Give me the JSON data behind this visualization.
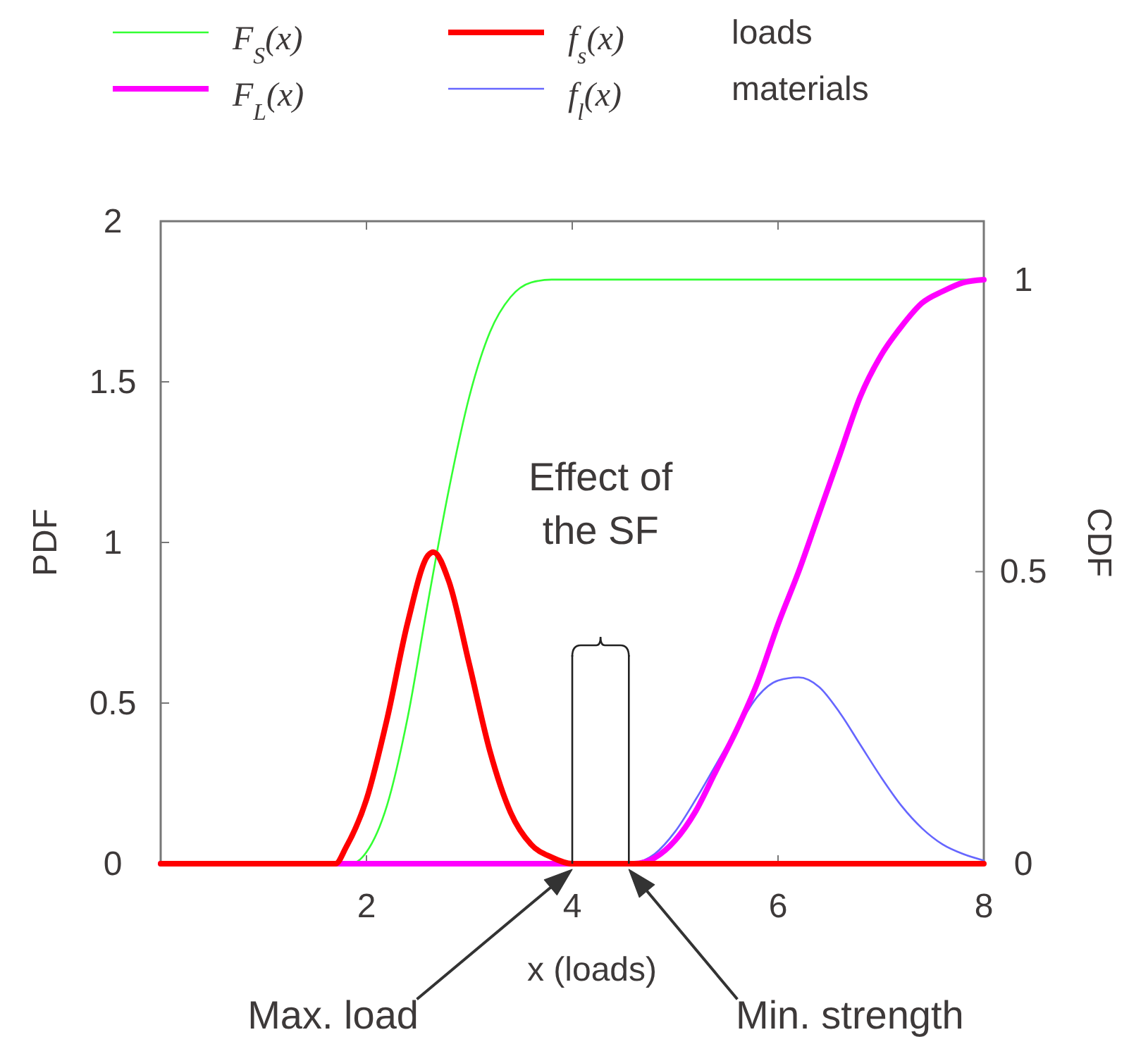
{
  "chart_data": {
    "type": "line",
    "xlabel": "x (loads)",
    "ylabel": "PDF",
    "y2label": "CDF",
    "xlim": [
      0,
      8
    ],
    "xticks": [
      2,
      4,
      6,
      8
    ],
    "ylim": [
      0,
      2
    ],
    "yticks": [
      0,
      0.5,
      1,
      1.5,
      2
    ],
    "y2lim": [
      0,
      1.1
    ],
    "y2ticks": [
      0,
      0.5,
      1
    ],
    "legend": "top",
    "grid": false,
    "marker": "none",
    "line_style": "solid",
    "series": [
      {
        "name": "F$_{S}$(x)",
        "color": "#33ff33",
        "axis": "y2",
        "x": [
          0,
          1.85,
          2.0,
          2.2,
          2.4,
          2.6,
          2.8,
          3.0,
          3.2,
          3.4,
          3.6,
          3.8,
          8
        ],
        "values": [
          0,
          0,
          0.02,
          0.1,
          0.25,
          0.45,
          0.64,
          0.8,
          0.91,
          0.97,
          0.995,
          1,
          1
        ]
      },
      {
        "name": "F$_{L}$(x)",
        "color": "#ff00ff",
        "axis": "y2",
        "x": [
          0,
          4.6,
          4.8,
          5.0,
          5.2,
          5.4,
          5.6,
          5.8,
          6.0,
          6.2,
          6.4,
          6.6,
          6.8,
          7.0,
          7.2,
          7.4,
          7.6,
          7.8,
          8
        ],
        "values": [
          0,
          0,
          0.01,
          0.04,
          0.09,
          0.16,
          0.23,
          0.31,
          0.41,
          0.5,
          0.6,
          0.7,
          0.8,
          0.87,
          0.92,
          0.96,
          0.98,
          0.995,
          1
        ]
      },
      {
        "name": "f$_{s}$(x)",
        "color": "#ff0000",
        "axis": "y",
        "x": [
          0,
          1.7,
          1.8,
          2.0,
          2.2,
          2.4,
          2.6,
          2.65,
          2.8,
          3.0,
          3.2,
          3.4,
          3.6,
          3.8,
          4.0,
          8
        ],
        "values": [
          0,
          0,
          0.05,
          0.2,
          0.45,
          0.75,
          0.96,
          0.97,
          0.88,
          0.62,
          0.35,
          0.16,
          0.06,
          0.02,
          0,
          0
        ]
      },
      {
        "name": "f$_{l}$(x)",
        "color": "#6666ff",
        "axis": "y",
        "x": [
          4.6,
          4.8,
          5.0,
          5.2,
          5.4,
          5.6,
          5.8,
          6.0,
          6.2,
          6.4,
          6.6,
          6.8,
          7.0,
          7.2,
          7.4,
          7.6,
          7.8,
          8.0
        ],
        "values": [
          0,
          0.03,
          0.1,
          0.2,
          0.31,
          0.42,
          0.52,
          0.57,
          0.58,
          0.55,
          0.47,
          0.37,
          0.27,
          0.18,
          0.11,
          0.06,
          0.03,
          0.01
        ]
      }
    ],
    "ref_lines": [
      {
        "axis": "x",
        "value": 4,
        "color": "#222222"
      },
      {
        "axis": "x",
        "value": 4.55,
        "color": "#222222"
      }
    ],
    "annotations": [
      "loads",
      "materials",
      "Effect of the SF",
      "Max. load",
      "Min. strength"
    ]
  }
}
